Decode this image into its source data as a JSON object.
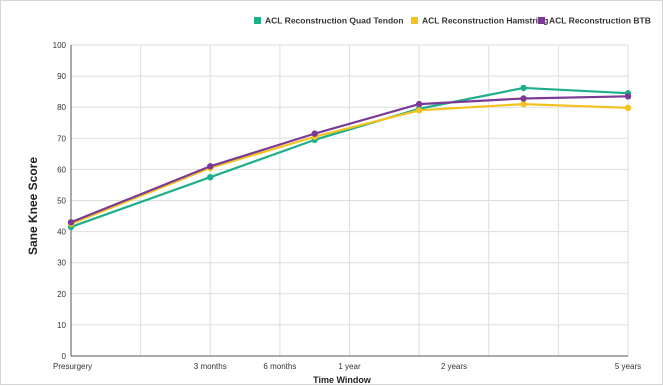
{
  "chart_data": {
    "type": "line",
    "title": "",
    "xlabel": "Time Window",
    "ylabel": "Sane Knee Score",
    "ylim": [
      0,
      100
    ],
    "yticks": [
      0,
      10,
      20,
      30,
      40,
      50,
      60,
      70,
      80,
      90,
      100
    ],
    "categories": [
      "Presurgery",
      "3 months",
      "6 months",
      "1 year",
      "2 years",
      "5 years"
    ],
    "x_label_positions": [
      0,
      2,
      3,
      4,
      5.5,
      8
    ],
    "grid": true,
    "legend_position": "top",
    "series": [
      {
        "name": "ACL Reconstruction Quad Tendon",
        "color": "#1fae8c",
        "x": [
          0,
          2,
          3.5,
          5,
          6.5,
          8
        ],
        "values": [
          41.5,
          57.5,
          69.5,
          79.5,
          86.2,
          84.5
        ]
      },
      {
        "name": "ACL Reconstruction Hamstring",
        "color": "#f2c31c",
        "x": [
          0,
          2,
          3.5,
          5,
          6.5,
          8
        ],
        "values": [
          42.5,
          60.5,
          70.5,
          79,
          81,
          79.8
        ]
      },
      {
        "name": "ACL Reconstruction BTB",
        "color": "#7b3a96",
        "x": [
          0,
          2,
          3.5,
          5,
          6.5,
          8
        ],
        "values": [
          43,
          61,
          71.5,
          81,
          82.8,
          83.5
        ]
      }
    ]
  }
}
